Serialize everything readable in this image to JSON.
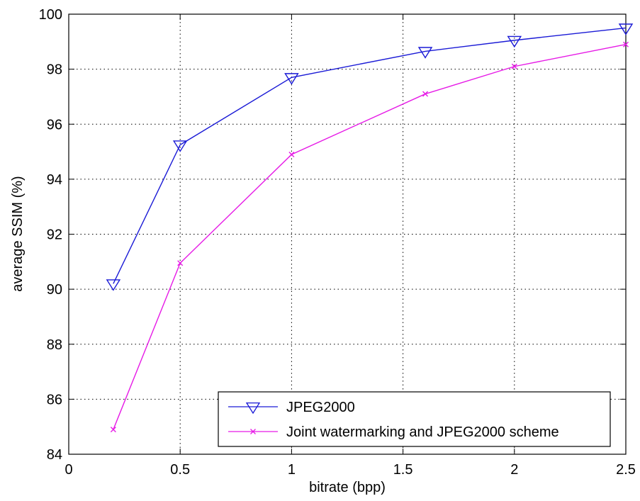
{
  "chart_data": {
    "type": "line",
    "xlabel": "bitrate (bpp)",
    "ylabel": "average SSIM (%)",
    "xlim": [
      0,
      2.5
    ],
    "ylim": [
      84,
      100
    ],
    "xticks": [
      0,
      0.5,
      1,
      1.5,
      2,
      2.5
    ],
    "xtick_labels": [
      "0",
      "0.5",
      "1",
      "1.5",
      "2",
      "2.5"
    ],
    "yticks": [
      84,
      86,
      88,
      90,
      92,
      94,
      96,
      98,
      100
    ],
    "ytick_labels": [
      "84",
      "86",
      "88",
      "90",
      "92",
      "94",
      "96",
      "98",
      "100"
    ],
    "grid": true,
    "legend_position": "bottom-right",
    "series": [
      {
        "name": "JPEG2000",
        "color": "#1a1ad6",
        "marker": "triangle-down",
        "x": [
          0.2,
          0.5,
          1.0,
          1.6,
          2.0,
          2.5
        ],
        "y": [
          90.2,
          95.25,
          97.7,
          98.65,
          99.05,
          99.5
        ]
      },
      {
        "name": "Joint watermarking and JPEG2000 scheme",
        "color": "#e61ae6",
        "marker": "x",
        "x": [
          0.2,
          0.5,
          1.0,
          1.6,
          2.0,
          2.5
        ],
        "y": [
          84.9,
          90.95,
          94.9,
          97.1,
          98.1,
          98.9
        ]
      }
    ]
  }
}
